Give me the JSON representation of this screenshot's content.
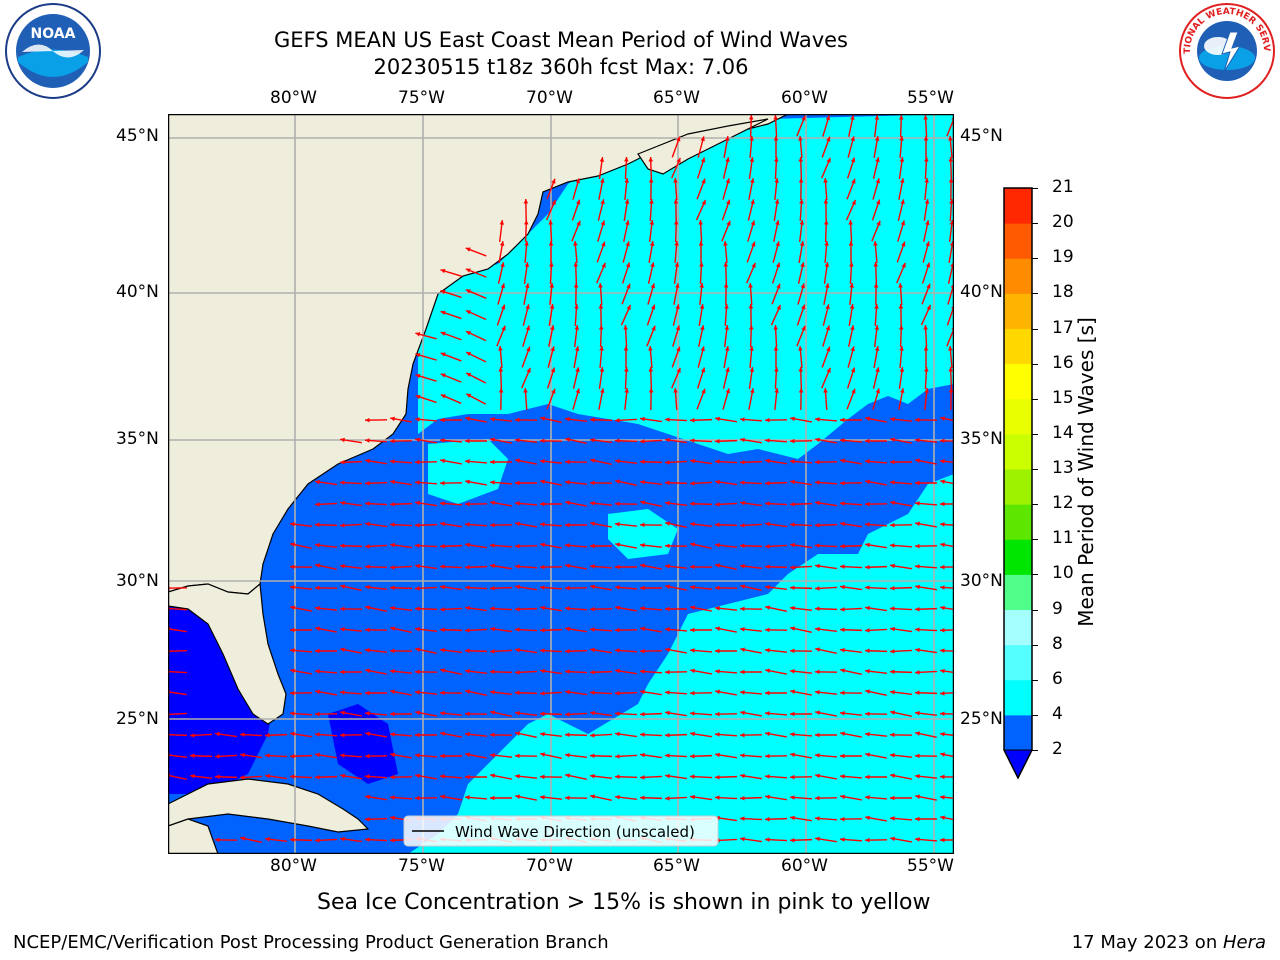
{
  "header": {
    "title_line1": "GEFS MEAN US East Coast Mean Period of Wind Waves",
    "title_line2": "20230515 t18z 360h fcst   Max: 7.06"
  },
  "logos": {
    "left": {
      "name": "noaa-logo",
      "text": "NOAA"
    },
    "right": {
      "name": "nws-logo",
      "text": "NATIONAL WEATHER SERVICE"
    }
  },
  "map": {
    "lon_labels": [
      "80°W",
      "75°W",
      "70°W",
      "65°W",
      "60°W",
      "55°W"
    ],
    "lat_labels": [
      "45°N",
      "40°N",
      "35°N",
      "30°N",
      "25°N"
    ],
    "legend_label": "Wind Wave Direction (unscaled)",
    "land_color": "#efeedc",
    "arrow_color": "#ff0000"
  },
  "colorbar": {
    "label": "Mean Period of Wind Waves [s]",
    "ticks": [
      "2",
      "4",
      "6",
      "8",
      "9",
      "10",
      "11",
      "12",
      "13",
      "14",
      "15",
      "16",
      "17",
      "18",
      "19",
      "20",
      "21"
    ],
    "colors": [
      "#0063ff",
      "#00ffff",
      "#54ffff",
      "#a6ffff",
      "#4fff8a",
      "#00e600",
      "#5ce600",
      "#9ef200",
      "#cbff00",
      "#e9ff00",
      "#ffff00",
      "#ffd800",
      "#ffb400",
      "#ff8c00",
      "#ff5a00",
      "#ff2800",
      "#ff0000"
    ],
    "extend_color": "#0000ff"
  },
  "notes": {
    "sea_ice": "Sea Ice Concentration > 15% is shown in pink to yellow",
    "left_footer": "NCEP/EMC/Verification Post Processing Product Generation Branch",
    "right_footer_date": "17 May 2023 on ",
    "right_footer_host": "Hera"
  }
}
